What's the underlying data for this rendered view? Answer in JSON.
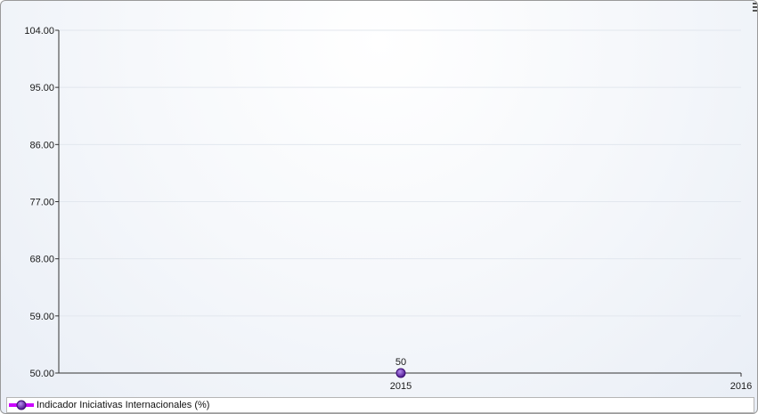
{
  "chart_data": {
    "type": "line",
    "title": "",
    "xlabel": "",
    "ylabel": "",
    "x": [
      "2015",
      "2016"
    ],
    "ylim": [
      50,
      104
    ],
    "yticks": [
      "104.00",
      "95.00",
      "86.00",
      "77.00",
      "68.00",
      "59.00",
      "50.00"
    ],
    "grid": true,
    "legend_position": "bottom",
    "series": [
      {
        "name": "Indicador Iniciativas Internacionales (%)",
        "color": "#6a1fbf",
        "line_color": "#cc00ff",
        "points": [
          {
            "x": "2015",
            "y": 50,
            "label": "50"
          }
        ]
      }
    ]
  },
  "icons": {
    "settings": "gear-icon"
  }
}
